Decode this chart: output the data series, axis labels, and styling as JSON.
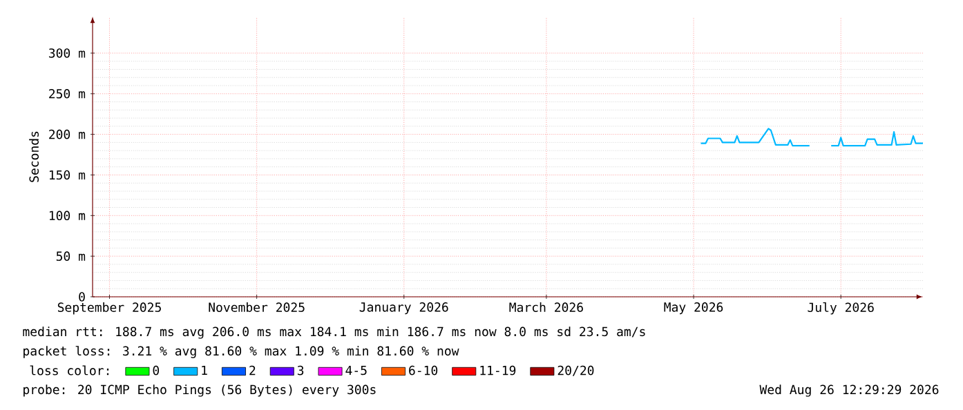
{
  "chart_data": {
    "type": "line",
    "ylabel": "Seconds",
    "legend_title": "loss color:",
    "legend": "bottom",
    "grid": true,
    "xlim": [
      "2025-08-25",
      "2026-08-04"
    ],
    "xticks": [
      {
        "value": "2025-09-01",
        "label": "September 2025"
      },
      {
        "value": "2025-11-01",
        "label": "November 2025"
      },
      {
        "value": "2026-01-01",
        "label": "January 2026"
      },
      {
        "value": "2026-03-01",
        "label": "March 2026"
      },
      {
        "value": "2026-05-01",
        "label": "May 2026"
      },
      {
        "value": "2026-07-01",
        "label": "July 2026"
      }
    ],
    "ylim": [
      0,
      345
    ],
    "yticks": [
      0,
      {
        "value": 50,
        "label": "50 m"
      },
      {
        "value": 100,
        "label": "100 m"
      },
      {
        "value": 150,
        "label": "150 m"
      },
      {
        "value": 200,
        "label": "200 m"
      },
      {
        "value": 250,
        "label": "250 m"
      },
      {
        "value": 300,
        "label": "300 m"
      }
    ],
    "x": [
      "2026-05-04",
      "2026-05-06",
      "2026-05-07",
      "2026-05-12",
      "2026-05-13",
      "2026-05-18",
      "2026-05-19",
      "2026-05-20",
      "2026-05-28",
      "2026-06-01",
      "2026-06-02",
      "2026-06-04",
      "2026-06-09",
      "2026-06-10",
      "2026-06-11",
      "2026-06-18",
      "2026-06-22",
      "2026-06-27",
      "2026-06-30",
      "2026-07-01",
      "2026-07-02",
      "2026-07-11",
      "2026-07-12",
      "2026-07-15",
      "2026-07-16",
      "2026-07-22",
      "2026-07-23",
      "2026-07-24",
      "2026-07-30",
      "2026-07-31",
      "2026-08-01",
      "2026-08-04"
    ],
    "series": [
      {
        "name": "0",
        "color": "#00ff00",
        "values": [
          null,
          null,
          null,
          null,
          null,
          null,
          null,
          null,
          null,
          null,
          null,
          null,
          null,
          null,
          null,
          null,
          null,
          null,
          null,
          null,
          null,
          null,
          null,
          null,
          null,
          null,
          null,
          null,
          null,
          null,
          null,
          null
        ]
      },
      {
        "name": "1",
        "color": "#00b8ff",
        "values": [
          189,
          189,
          195,
          195,
          190,
          190,
          198,
          190,
          190,
          207,
          205,
          187,
          187,
          193,
          186,
          186,
          null,
          186,
          186,
          196,
          186,
          186,
          194,
          194,
          187,
          187,
          203,
          187,
          188,
          198,
          189,
          189
        ]
      },
      {
        "name": "2",
        "color": "#0059ff",
        "values": [
          null,
          null,
          null,
          null,
          null,
          null,
          null,
          null,
          null,
          null,
          null,
          null,
          null,
          null,
          null,
          null,
          null,
          null,
          null,
          null,
          null,
          null,
          null,
          null,
          null,
          null,
          null,
          null,
          null,
          null,
          null,
          null
        ]
      },
      {
        "name": "3",
        "color": "#5e00ff",
        "values": [
          null,
          null,
          null,
          null,
          null,
          null,
          null,
          null,
          null,
          null,
          null,
          null,
          null,
          null,
          null,
          null,
          null,
          null,
          null,
          null,
          null,
          null,
          null,
          null,
          null,
          null,
          null,
          null,
          null,
          null,
          null,
          null
        ]
      },
      {
        "name": "4-5",
        "color": "#ff00ff",
        "values": [
          null,
          null,
          null,
          null,
          null,
          null,
          null,
          null,
          null,
          null,
          null,
          null,
          null,
          null,
          null,
          null,
          null,
          null,
          null,
          null,
          null,
          null,
          null,
          null,
          null,
          null,
          null,
          null,
          null,
          null,
          null,
          null
        ]
      },
      {
        "name": "6-10",
        "color": "#ff5e00",
        "values": [
          null,
          null,
          null,
          null,
          null,
          null,
          null,
          null,
          null,
          null,
          null,
          null,
          null,
          null,
          null,
          null,
          null,
          null,
          null,
          null,
          null,
          null,
          null,
          null,
          null,
          null,
          null,
          null,
          null,
          null,
          null,
          null
        ]
      },
      {
        "name": "11-19",
        "color": "#ff0000",
        "values": [
          null,
          null,
          null,
          null,
          null,
          null,
          null,
          null,
          null,
          null,
          null,
          null,
          null,
          null,
          null,
          null,
          null,
          null,
          null,
          null,
          null,
          null,
          null,
          null,
          null,
          null,
          null,
          null,
          null,
          null,
          null,
          null
        ]
      },
      {
        "name": "20/20",
        "color": "#a10000",
        "values": [
          null,
          null,
          null,
          null,
          null,
          null,
          null,
          null,
          null,
          null,
          null,
          null,
          null,
          null,
          null,
          null,
          null,
          null,
          null,
          null,
          null,
          null,
          null,
          null,
          null,
          null,
          null,
          null,
          null,
          null,
          null,
          null
        ]
      }
    ],
    "annotations": [
      "median rtt:  188.7 ms avg  206.0 ms max  184.1 ms min  186.7 ms now  8.0 ms sd  23.5   am/s",
      "packet loss: 3.21 % avg  81.60 % max  1.09 % min  81.60 % now",
      "probe:       20 ICMP Echo Pings (56 Bytes) every 300s",
      "Wed Aug 26 12:29:29 2026"
    ]
  }
}
